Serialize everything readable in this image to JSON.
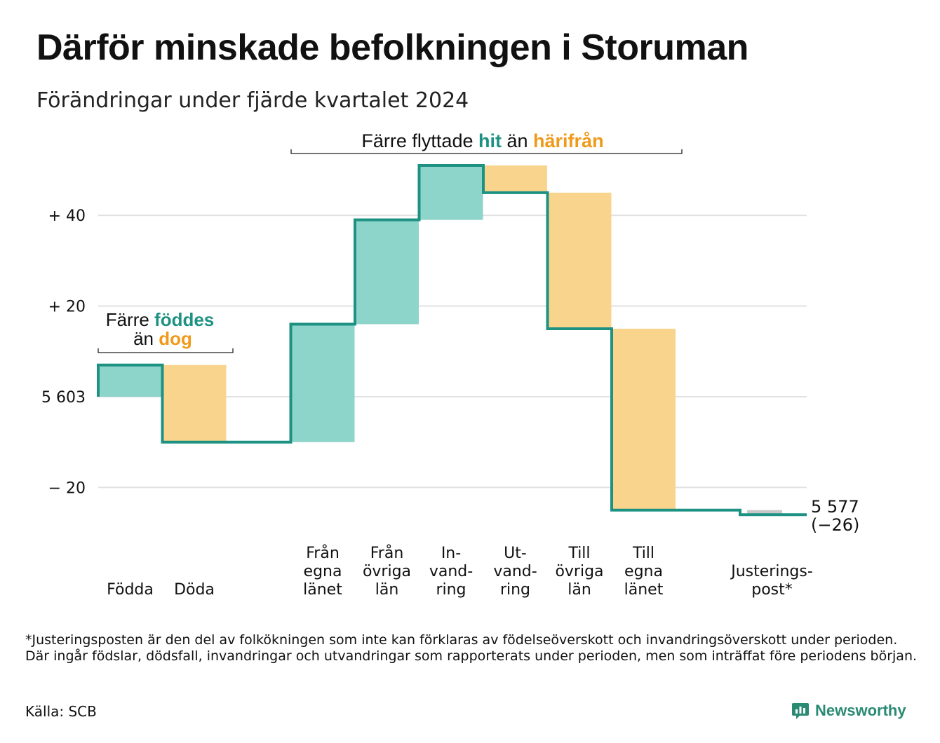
{
  "title": "Därför minskade befolkningen i Storuman",
  "subtitle": "Förändringar under fjärde kvartalet 2024",
  "colors": {
    "increase": "#8dd4cb",
    "decrease": "#f9d48c",
    "adjustment": "#c8c8c8",
    "line": "#1e9282",
    "accent_teal": "#1e9282",
    "accent_orange": "#ef9a1a",
    "grid": "#e2e2e2"
  },
  "annotations": {
    "births": {
      "pre": "Färre ",
      "hit": "föddes",
      "line2_pre": "än ",
      "orange": "dog"
    },
    "migration": {
      "pre": "Färre flyttade ",
      "hit": "hit",
      "mid": " än ",
      "orange": "härifrån"
    }
  },
  "end_label": {
    "value": "5 577",
    "change": "(−26)"
  },
  "footnote": "*Justeringsposten är den del av folkökningen som inte kan förklaras av födelseöverskott och invandringsöverskott under perioden. Där ingår födslar, dödsfall, invandringar och utvandringar som rapporterats under perioden, men som inträffat före periodens början.",
  "source": "Källa: SCB",
  "brand": "Newsworthy",
  "chart_data": {
    "type": "waterfall",
    "start_value": 5603,
    "end_value": 5577,
    "ylim": [
      -28,
      52
    ],
    "yticks": [
      {
        "value": 40,
        "label": "+ 40"
      },
      {
        "value": 20,
        "label": "+ 20"
      },
      {
        "value": 0,
        "label": "5 603"
      },
      {
        "value": -20,
        "label": "− 20"
      }
    ],
    "grid": true,
    "categories": [
      {
        "label": [
          "Födda"
        ],
        "change": 7
      },
      {
        "label": [
          "Döda"
        ],
        "change": -17
      },
      {
        "label": [],
        "change": 0
      },
      {
        "label": [
          "Från",
          "egna",
          "länet"
        ],
        "change": 26
      },
      {
        "label": [
          "Från",
          "övriga",
          "län"
        ],
        "change": 23
      },
      {
        "label": [
          "In-",
          "vand-",
          "ring"
        ],
        "change": 12
      },
      {
        "label": [
          "Ut-",
          "vand-",
          "ring"
        ],
        "change": -6
      },
      {
        "label": [
          "Till",
          "övriga",
          "län"
        ],
        "change": -30
      },
      {
        "label": [
          "Till",
          "egna",
          "länet"
        ],
        "change": -40
      },
      {
        "label": [],
        "change": 0
      },
      {
        "label": [
          "Justerings-",
          "post*"
        ],
        "change": -1
      }
    ]
  }
}
